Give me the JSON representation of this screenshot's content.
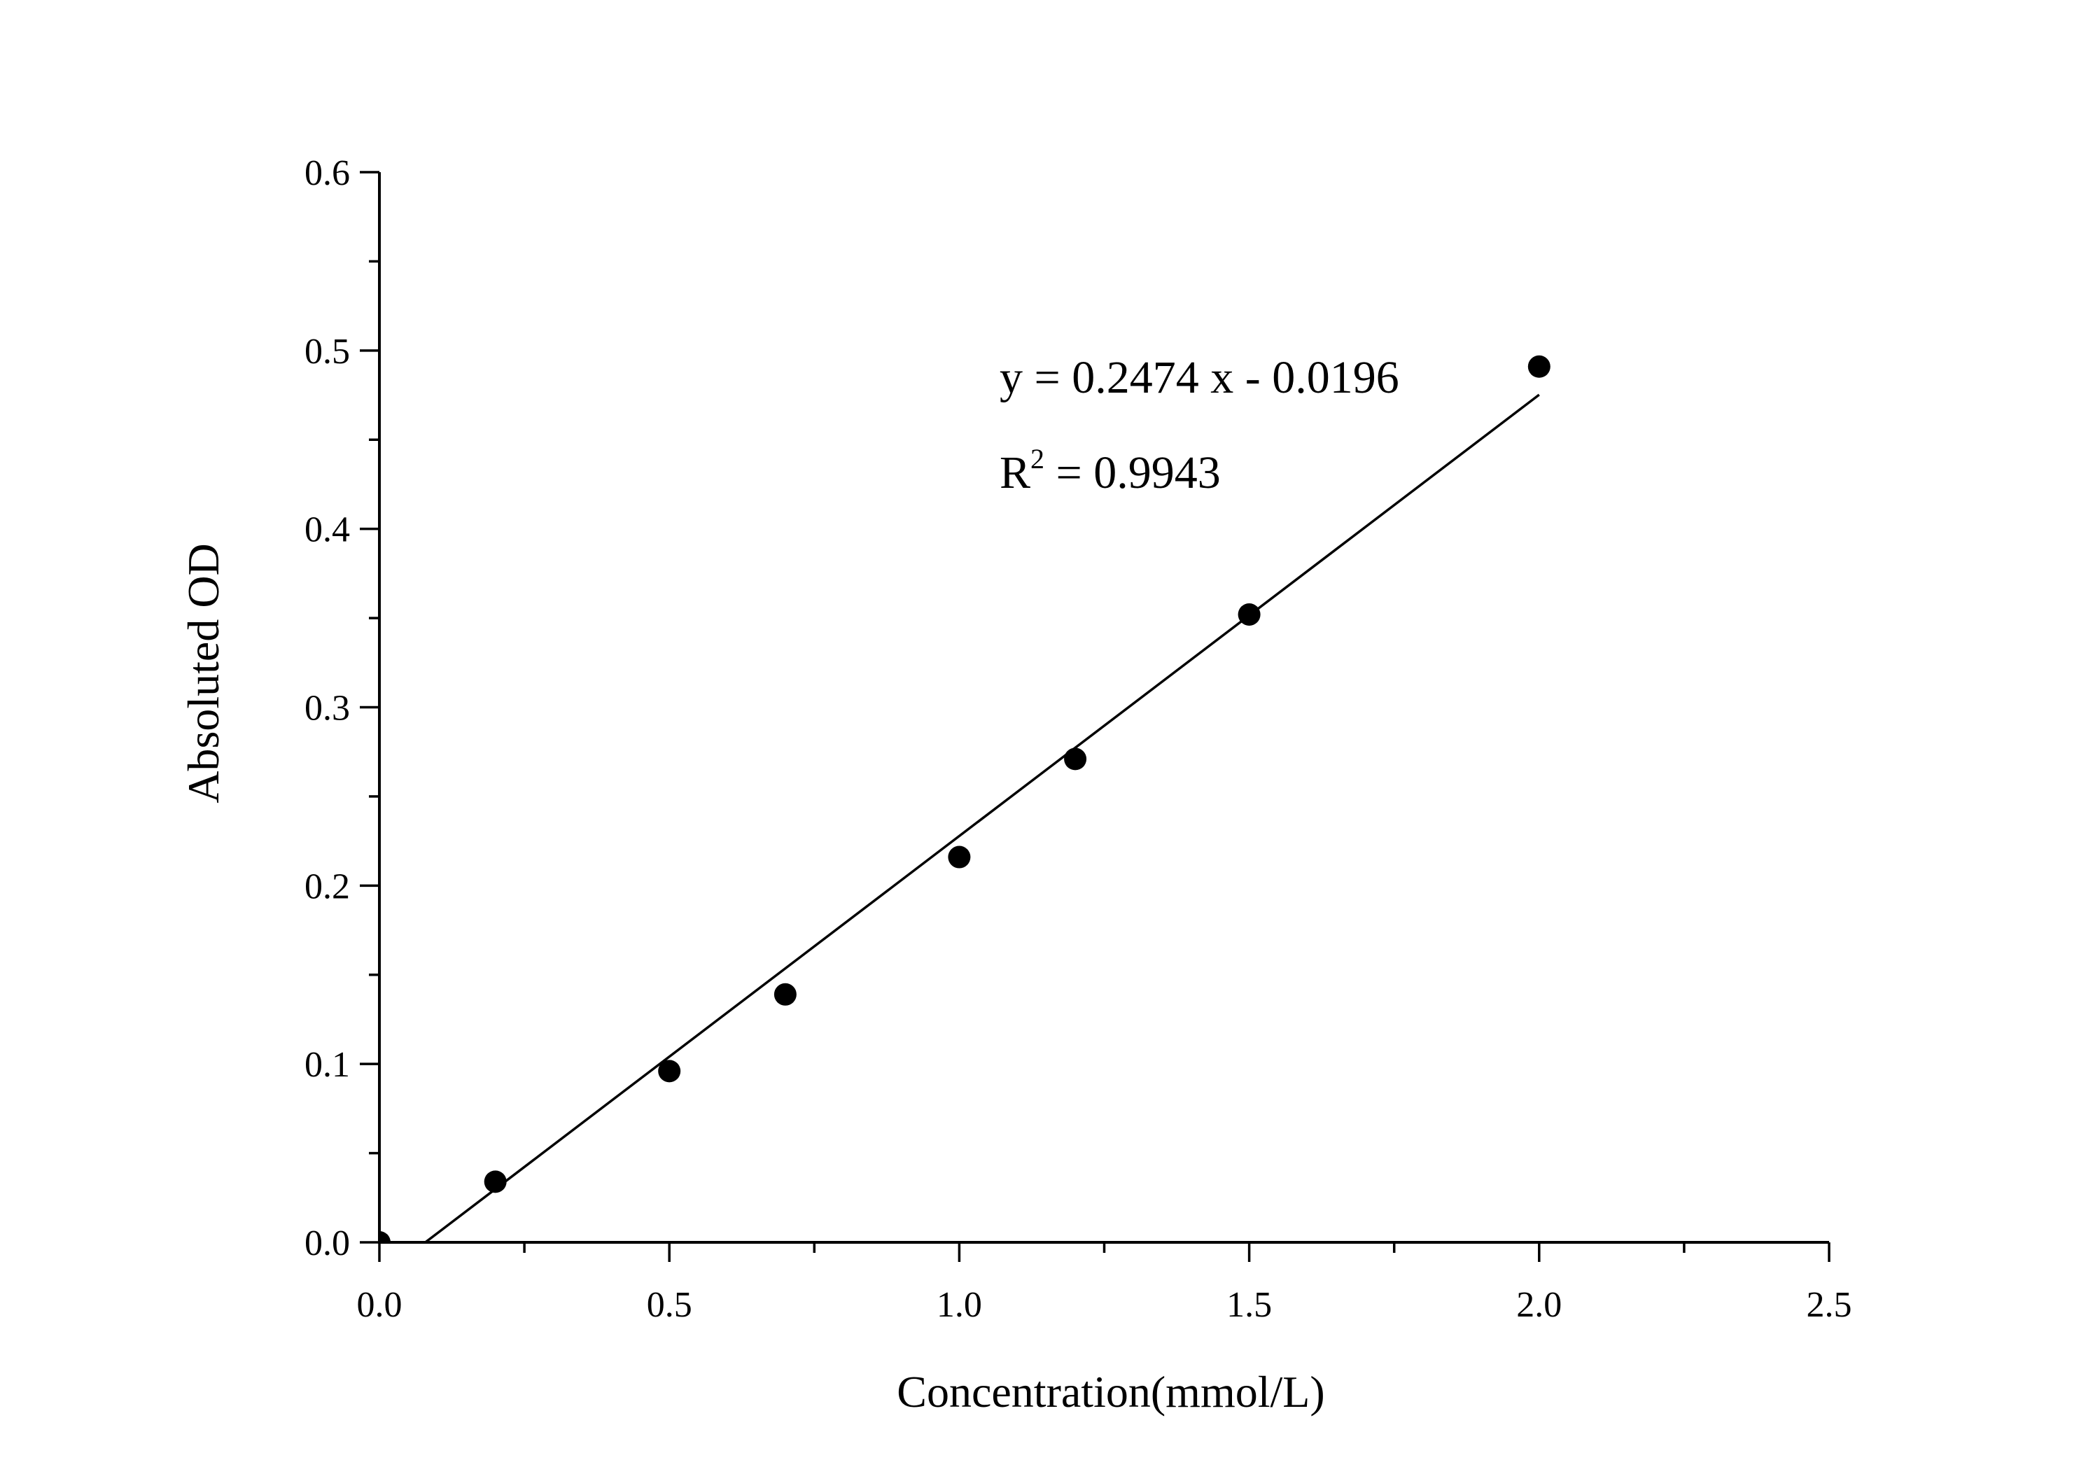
{
  "chart_data": {
    "type": "scatter",
    "x": [
      0,
      0.2,
      0.5,
      0.7,
      1.0,
      1.2,
      1.5,
      2.0
    ],
    "y": [
      0,
      0.034,
      0.096,
      0.139,
      0.216,
      0.271,
      0.352,
      0.491
    ],
    "xlabel": "Concentration(mmol/L)",
    "ylabel": "Absoluted OD",
    "xlim": [
      0,
      2.5
    ],
    "ylim": [
      0,
      0.6
    ],
    "xticks": [
      "0.0",
      "0.5",
      "1.0",
      "1.5",
      "2.0",
      "2.5"
    ],
    "yticks": [
      "0.0",
      "0.1",
      "0.2",
      "0.3",
      "0.4",
      "0.5",
      "0.6"
    ],
    "fit": {
      "type": "linear",
      "slope": 0.2474,
      "intercept": -0.0196
    },
    "annotations": {
      "equation": "y = 0.2474 x - 0.0196",
      "r2_base": "R",
      "r2_sup": "2",
      "r2_rest": " = 0.9943"
    },
    "grid": false,
    "legend": "none",
    "marker_color": "#000000",
    "line_color": "#000000"
  }
}
